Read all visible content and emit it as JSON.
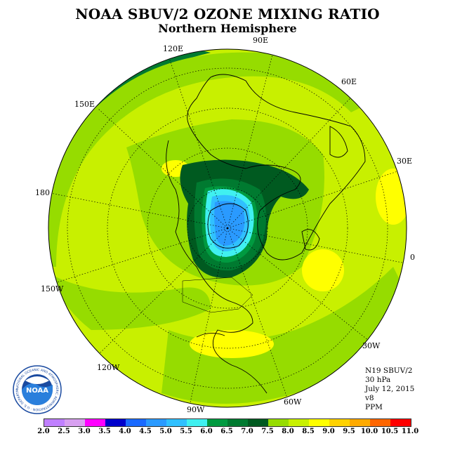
{
  "title": "NOAA SBUV/2 OZONE MIXING RATIO",
  "subtitle": "Northern Hemisphere",
  "longitude_labels": [
    "120E",
    "90E",
    "60E",
    "30E",
    "0",
    "30W",
    "60W",
    "90W",
    "120W",
    "150W",
    "180",
    "150E"
  ],
  "info": {
    "satellite": "N19 SBUV/2",
    "level": "30 hPa",
    "date": "July 12, 2015",
    "version": "v8",
    "units": "PPM"
  },
  "logo": {
    "text": "NOAA",
    "ring_text": "NATIONAL OCEANIC AND ATMOSPHERIC ADMINISTRATION · U.S. DEPARTMENT OF COMMERCE"
  },
  "colorbar": {
    "ticks": [
      "2.0",
      "2.5",
      "3.0",
      "3.5",
      "4.0",
      "4.5",
      "5.0",
      "5.5",
      "6.0",
      "6.5",
      "7.0",
      "7.5",
      "8.0",
      "8.5",
      "9.0",
      "9.5",
      "10.0",
      "10.5",
      "11.0"
    ],
    "colors": [
      "#c080ff",
      "#d8a0f0",
      "#ff00ff",
      "#0000cc",
      "#1a6aff",
      "#2a9aff",
      "#30c0ff",
      "#40f0f0",
      "#009a40",
      "#007a30",
      "#005a20",
      "#96dc00",
      "#c8f000",
      "#ffff00",
      "#ffd200",
      "#ffaa00",
      "#ff6600",
      "#ff0000",
      "#8b4a2a"
    ]
  },
  "colors": {
    "background": "#ffffff",
    "ocean_base": "#c8f000"
  }
}
